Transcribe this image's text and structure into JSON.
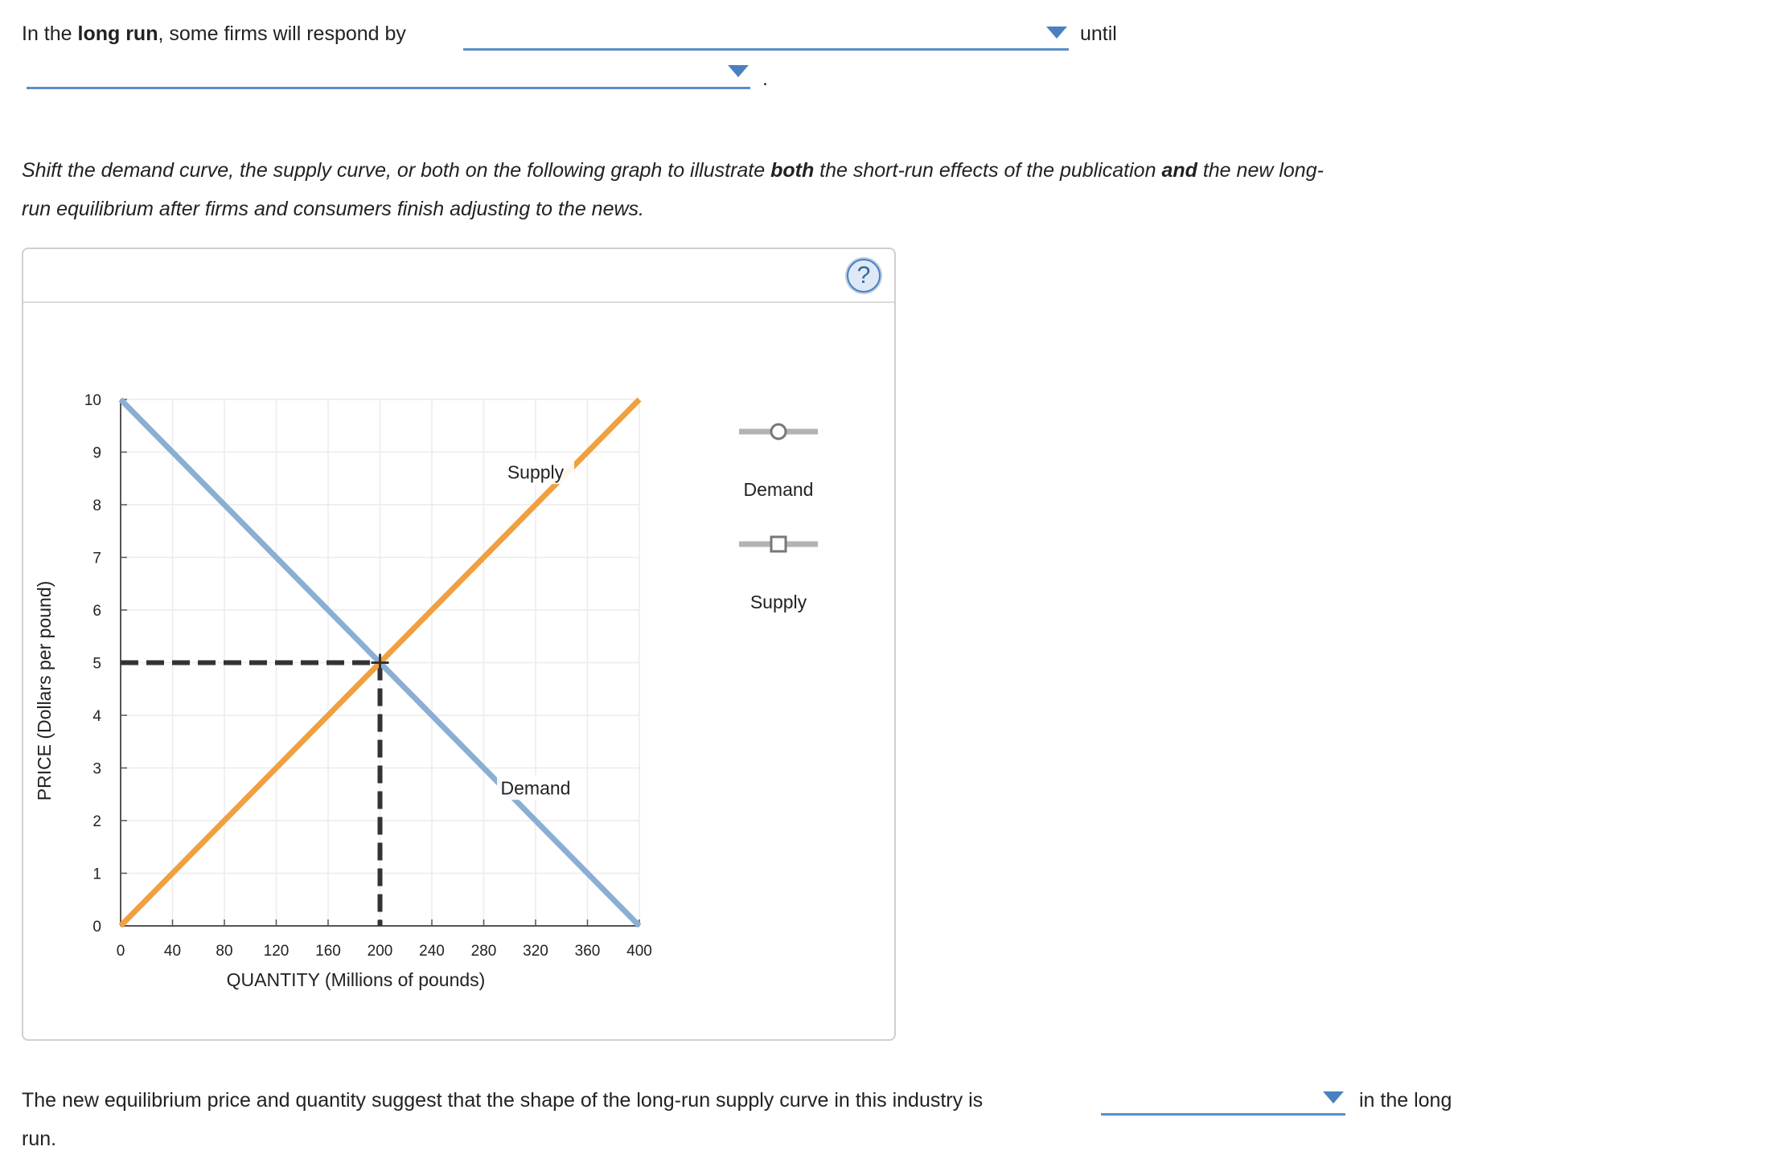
{
  "question1": {
    "part1_plain": "In the ",
    "part1_bold": "long run",
    "part1_rest": ", some firms will respond by",
    "dropdown1_value": "",
    "until": "until",
    "dropdown2_value": "",
    "period": "."
  },
  "instructions": {
    "part1": "Shift the demand curve, the supply curve, or both on the following graph to illustrate ",
    "bold1": "both",
    "part2": " the short-run effects of the publication ",
    "bold2": "and",
    "part3": " the new long-",
    "line2": "run equilibrium after firms and consumers finish adjusting to the news."
  },
  "help_label": "?",
  "palette": {
    "demand_items": [
      {
        "label": "Demand",
        "marker": "circle-icon"
      }
    ],
    "supply_items": [
      {
        "label": "Supply",
        "marker": "square-icon"
      }
    ]
  },
  "colors": {
    "demand": "#8aaed4",
    "supply": "#f0a040",
    "dashed": "#333333",
    "dropdown": "#4a80c0"
  },
  "chart_data": {
    "type": "line",
    "xlabel": "QUANTITY (Millions of pounds)",
    "ylabel": "PRICE (Dollars per pound)",
    "xlim": [
      0,
      400
    ],
    "ylim": [
      0,
      10
    ],
    "x_ticks": [
      0,
      40,
      80,
      120,
      160,
      200,
      240,
      280,
      320,
      360,
      400
    ],
    "y_ticks": [
      0,
      1,
      2,
      3,
      4,
      5,
      6,
      7,
      8,
      9,
      10
    ],
    "grid": true,
    "series": [
      {
        "name": "Demand",
        "color": "#8aaed4",
        "points": [
          [
            0,
            10
          ],
          [
            400,
            0
          ]
        ],
        "label": "Demand",
        "label_at": [
          320,
          2.5
        ]
      },
      {
        "name": "Supply",
        "color": "#f0a040",
        "points": [
          [
            0,
            0
          ],
          [
            400,
            10
          ]
        ],
        "label": "Supply",
        "label_at": [
          320,
          8.5
        ]
      }
    ],
    "equilibrium": {
      "x": 200,
      "y": 5
    }
  },
  "question2": {
    "text": "The new equilibrium price and quantity suggest that the shape of the long-run supply curve in this industry is",
    "dropdown_value": "",
    "after": "in the long",
    "line2": "run."
  }
}
